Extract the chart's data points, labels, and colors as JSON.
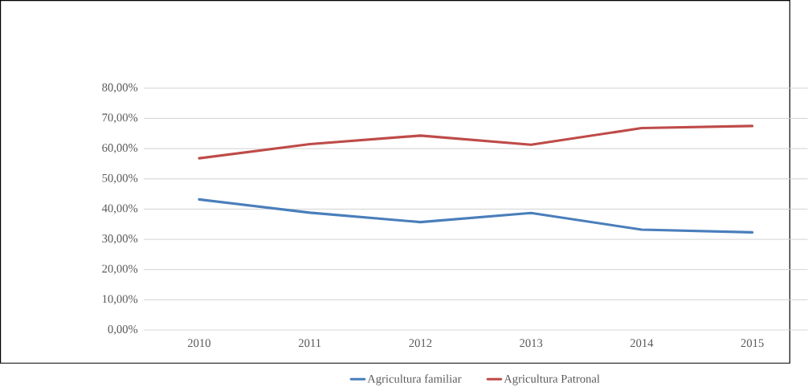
{
  "chart_data": {
    "type": "line",
    "categories": [
      "2010",
      "2011",
      "2012",
      "2013",
      "2014",
      "2015"
    ],
    "series": [
      {
        "name": "Agricultura familiar",
        "color": "#4a7ebb",
        "values": [
          43.2,
          38.8,
          35.7,
          38.7,
          33.2,
          32.3
        ]
      },
      {
        "name": "Agricultura Patronal",
        "color": "#be4b48",
        "values": [
          56.8,
          61.5,
          64.3,
          61.3,
          66.8,
          67.5
        ]
      }
    ],
    "ylim": [
      0,
      80
    ],
    "yticks": [
      {
        "value": 0,
        "label": "0,00%"
      },
      {
        "value": 10,
        "label": "10,00%"
      },
      {
        "value": 20,
        "label": "20,00%"
      },
      {
        "value": 30,
        "label": "30,00%"
      },
      {
        "value": 40,
        "label": "40,00%"
      },
      {
        "value": 50,
        "label": "50,00%"
      },
      {
        "value": 60,
        "label": "60,00%"
      },
      {
        "value": 70,
        "label": "70,00%"
      },
      {
        "value": 80,
        "label": "80,00%"
      }
    ],
    "grid": "y",
    "legend": "bottom",
    "line_style": "solid"
  }
}
